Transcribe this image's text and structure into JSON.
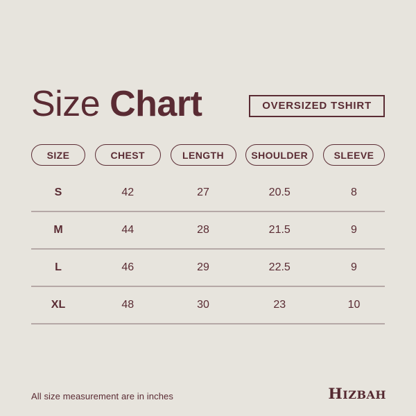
{
  "page": {
    "background": "#e7e4dd",
    "accent": "#5a2b33",
    "divider": "#b5a8a6"
  },
  "header": {
    "title_regular": "Size",
    "title_bold": "Chart",
    "badge": "OVERSIZED TSHIRT"
  },
  "chart_data": {
    "type": "table",
    "title": "Size Chart",
    "subtitle": "OVERSIZED TSHIRT",
    "columns": [
      "SIZE",
      "CHEST",
      "LENGTH",
      "SHOULDER",
      "SLEEVE"
    ],
    "rows": [
      [
        "S",
        42,
        27,
        20.5,
        8
      ],
      [
        "M",
        44,
        28,
        21.5,
        9
      ],
      [
        "L",
        46,
        29,
        22.5,
        9
      ],
      [
        "XL",
        48,
        30,
        23,
        10
      ]
    ],
    "units": "inches"
  },
  "footer": {
    "note": "All size measurement are in inches",
    "brand": "HIZBAH"
  }
}
